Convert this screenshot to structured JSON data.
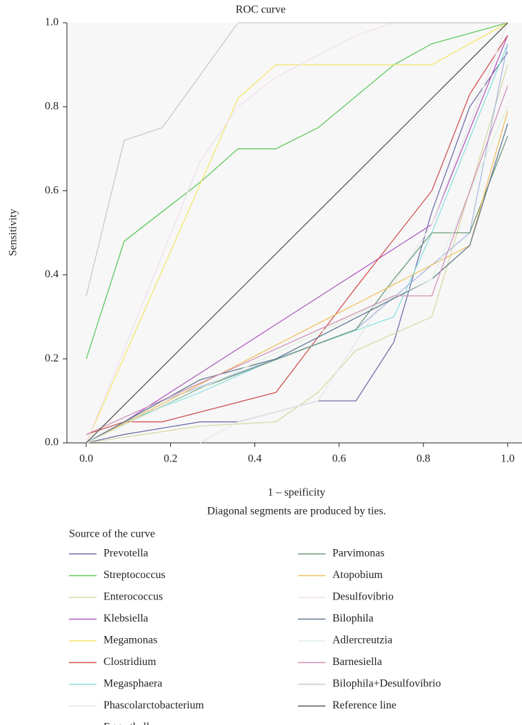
{
  "chart_data": {
    "type": "line",
    "title": "ROC curve",
    "x_label": "1 – speificity",
    "note": "Diagonal segments are produced by ties.",
    "y_label": "Sensitivity",
    "legend_title": "Source of the curve",
    "xlim": [
      -0.046,
      1.034
    ],
    "ylim": [
      0,
      1
    ],
    "xticks": [
      {
        "value": 0,
        "label": "0.0"
      },
      0.2,
      0.4,
      0.6,
      0.8,
      {
        "value": 1,
        "label": "1.0"
      }
    ],
    "yticks": [
      {
        "value": 0,
        "label": "0.0"
      },
      0.2,
      0.4,
      0.6,
      0.8,
      {
        "value": 1,
        "label": "1.0"
      }
    ],
    "series": [
      {
        "name": "Prevotella",
        "color": "#6b6fa8",
        "x": [
          0,
          0.09,
          0.27,
          0.36,
          0.55,
          0.64,
          0.73,
          0.82,
          0.91,
          1
        ],
        "values": [
          0,
          0.02,
          0.05,
          0.05,
          0.1,
          0.1,
          0.24,
          0.55,
          0.8,
          0.93
        ]
      },
      {
        "name": "Streptococcus",
        "color": "#5cc95c",
        "x": [
          0,
          0.09,
          0.27,
          0.36,
          0.45,
          0.55,
          0.73,
          0.82,
          1
        ],
        "values": [
          0.2,
          0.48,
          0.62,
          0.7,
          0.7,
          0.75,
          0.9,
          0.95,
          1
        ]
      },
      {
        "name": "Enterococcus",
        "color": "#d8d8a8",
        "x": [
          0,
          0.27,
          0.45,
          0.55,
          0.64,
          0.82,
          1
        ],
        "values": [
          0,
          0.04,
          0.05,
          0.12,
          0.22,
          0.3,
          0.9
        ]
      },
      {
        "name": "Klebsiella",
        "color": "#b05cc0",
        "x": [
          0,
          0.09,
          0.82,
          1
        ],
        "values": [
          0,
          0.05,
          0.52,
          0.97
        ]
      },
      {
        "name": "Megamonas",
        "color": "#f5e66a",
        "x": [
          0,
          0.36,
          0.45,
          0.82,
          1
        ],
        "values": [
          0,
          0.82,
          0.9,
          0.9,
          1
        ]
      },
      {
        "name": "Clostridium",
        "color": "#d05050",
        "x": [
          0,
          0.09,
          0.18,
          0.45,
          0.64,
          0.82,
          0.91,
          1
        ],
        "values": [
          0.02,
          0.05,
          0.05,
          0.12,
          0.37,
          0.6,
          0.83,
          0.97
        ]
      },
      {
        "name": "Megasphaera",
        "color": "#8ee0e0",
        "x": [
          0,
          0.09,
          0.27,
          0.45,
          0.73,
          0.82,
          1
        ],
        "values": [
          0,
          0.05,
          0.12,
          0.2,
          0.3,
          0.5,
          0.95
        ]
      },
      {
        "name": "Phascolarctobacterium",
        "color": "#e6e6e6",
        "x": [
          0.27,
          0.36,
          0.55,
          0.82,
          1
        ],
        "values": [
          0,
          0.05,
          0.1,
          0.52,
          1
        ]
      },
      {
        "name": "Eggerthella",
        "color": "#a8b8e0",
        "x": [
          0,
          0.18,
          0.64,
          0.91,
          1
        ],
        "values": [
          0,
          0.1,
          0.27,
          0.5,
          0.95
        ]
      },
      {
        "name": "Parvimonas",
        "color": "#6a9a7a",
        "x": [
          0,
          0.27,
          0.64,
          0.73,
          0.82,
          0.91,
          1
        ],
        "values": [
          0,
          0.13,
          0.27,
          0.39,
          0.5,
          0.5,
          0.73
        ]
      },
      {
        "name": "Atopobium",
        "color": "#f0c060",
        "x": [
          0,
          0.91,
          1
        ],
        "values": [
          0,
          0.47,
          0.79
        ]
      },
      {
        "name": "Desulfovibrio",
        "color": "#f0def0",
        "x": [
          0,
          0.27,
          0.36,
          0.45,
          0.64,
          0.73,
          1
        ],
        "values": [
          0,
          0.67,
          0.8,
          0.87,
          0.97,
          1,
          1
        ]
      },
      {
        "name": "Bilophila",
        "color": "#607890",
        "x": [
          0,
          0.27,
          0.45,
          0.82,
          0.91,
          1
        ],
        "values": [
          0,
          0.15,
          0.2,
          0.39,
          0.47,
          0.76
        ]
      },
      {
        "name": "Adlercreutzia",
        "color": "#dff0df",
        "x": [
          0,
          0.82,
          1
        ],
        "values": [
          0,
          0.39,
          0.8
        ]
      },
      {
        "name": "Barnesiella",
        "color": "#d090b8",
        "x": [
          0,
          0.73,
          0.82,
          1
        ],
        "values": [
          0.02,
          0.35,
          0.35,
          0.85
        ]
      },
      {
        "name": "Bilophila+Desulfovibrio",
        "color": "#c8c8c8",
        "x": [
          0,
          0.09,
          0.18,
          0.36,
          1
        ],
        "values": [
          0.35,
          0.72,
          0.75,
          1,
          1
        ]
      },
      {
        "name": "Reference line",
        "color": "#555555",
        "x": [
          0,
          1
        ],
        "values": [
          0,
          1
        ]
      }
    ]
  }
}
